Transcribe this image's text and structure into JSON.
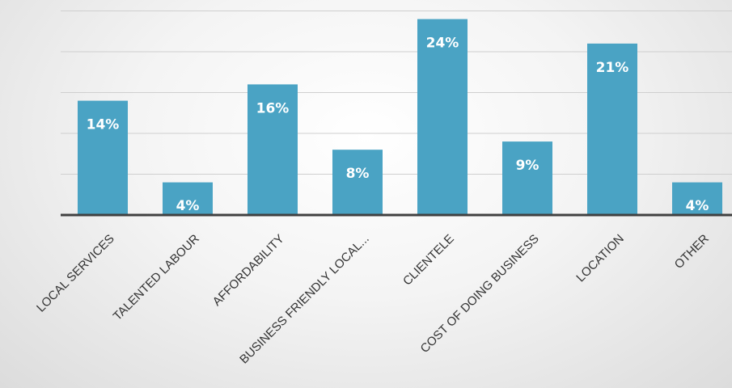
{
  "chart_data": {
    "type": "bar",
    "title": "",
    "xlabel": "",
    "ylabel": "",
    "categories": [
      "LOCAL SERVICES",
      "TALENTED LABOUR",
      "AFFORDABILITY",
      "BUSINESS FRIENDLY LOCAL...",
      "CLIENTELE",
      "COST OF DOING BUSINESS",
      "LOCATION",
      "OTHER"
    ],
    "values": [
      14,
      4,
      16,
      8,
      24,
      9,
      21,
      4
    ],
    "data_labels": [
      "14%",
      "4%",
      "16%",
      "8%",
      "24%",
      "9%",
      "21%",
      "4%"
    ],
    "ylim": [
      0,
      25
    ],
    "grid": true,
    "legend": "none",
    "bar_color": "#4AA3C4",
    "axis_color": "#404040",
    "grid_color": "#cfcfcf"
  }
}
